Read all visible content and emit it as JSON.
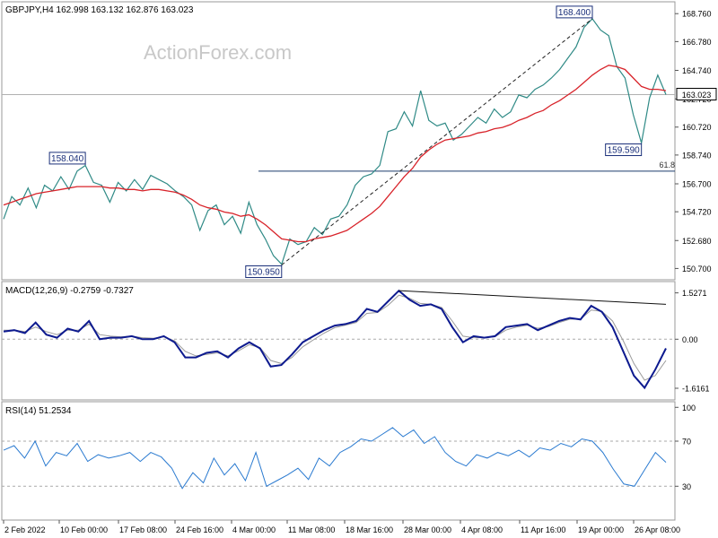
{
  "watermark": "ActionForex.com",
  "chart_data": [
    {
      "type": "line",
      "panel": "price",
      "title": "GBPJPY,H4  162.998 163.132 162.876 163.023",
      "ylim": [
        149.9,
        169.6
      ],
      "y_ticks": [
        "168.760",
        "166.780",
        "164.740",
        "162.720",
        "160.720",
        "158.740",
        "156.700",
        "154.720",
        "152.680",
        "150.700"
      ],
      "x_ticks": [
        "2 Feb 2022",
        "10 Feb 00:00",
        "17 Feb 08:00",
        "24 Feb 16:00",
        "4 Mar 00:00",
        "11 Mar 08:00",
        "18 Mar 16:00",
        "28 Mar 00:00",
        "4 Apr 08:00",
        "11 Apr 16:00",
        "19 Apr 00:00",
        "26 Apr 08:00"
      ],
      "current_price": "163.023",
      "series": [
        {
          "name": "",
          "color": "#2f8a86",
          "values": [
            154.2,
            155.8,
            155.2,
            156.4,
            155.0,
            156.6,
            156.2,
            157.2,
            156.3,
            157.6,
            158.0,
            156.8,
            156.6,
            155.4,
            156.8,
            156.2,
            157.0,
            156.3,
            157.3,
            157.0,
            156.7,
            156.2,
            155.8,
            155.2,
            153.4,
            154.8,
            155.2,
            153.8,
            154.4,
            153.2,
            155.4,
            153.8,
            152.8,
            151.6,
            151.0,
            152.8,
            152.4,
            152.6,
            153.6,
            153.1,
            154.2,
            154.4,
            155.2,
            156.6,
            157.2,
            157.4,
            158.0,
            160.4,
            160.6,
            161.8,
            160.8,
            163.3,
            161.2,
            160.8,
            161.0,
            159.8,
            160.2,
            160.8,
            161.4,
            161.0,
            162.0,
            161.4,
            161.8,
            163.0,
            162.8,
            163.4,
            163.7,
            164.2,
            164.8,
            165.6,
            166.4,
            167.8,
            168.4,
            167.6,
            167.2,
            165.0,
            164.2,
            161.6,
            159.6,
            162.8,
            164.4,
            163.023
          ]
        },
        {
          "name": "",
          "color": "#d8232a",
          "values": [
            155.2,
            155.4,
            155.6,
            155.8,
            156.0,
            156.1,
            156.2,
            156.3,
            156.4,
            156.5,
            156.5,
            156.5,
            156.5,
            156.4,
            156.4,
            156.3,
            156.3,
            156.2,
            156.3,
            156.3,
            156.2,
            156.1,
            155.9,
            155.6,
            155.2,
            155.0,
            154.9,
            154.7,
            154.6,
            154.4,
            154.5,
            154.2,
            153.8,
            153.3,
            152.8,
            152.7,
            152.6,
            152.6,
            152.8,
            152.9,
            153.0,
            153.2,
            153.4,
            153.8,
            154.2,
            154.6,
            155.1,
            155.8,
            156.5,
            157.2,
            157.8,
            158.6,
            159.1,
            159.5,
            159.8,
            159.9,
            160.0,
            160.1,
            160.3,
            160.4,
            160.6,
            160.7,
            160.9,
            161.2,
            161.4,
            161.7,
            161.9,
            162.3,
            162.6,
            163.0,
            163.4,
            163.9,
            164.4,
            164.8,
            165.1,
            165.0,
            164.8,
            164.2,
            163.6,
            163.4,
            163.4,
            163.3
          ]
        }
      ],
      "annotations": [
        {
          "label": "158.040",
          "x_index": 10,
          "value": 158.04
        },
        {
          "label": "150.950",
          "x_index": 34,
          "value": 150.95
        },
        {
          "label": "168.400",
          "x_index": 72,
          "value": 168.4
        },
        {
          "label": "159.590",
          "x_index": 78,
          "value": 159.59
        }
      ],
      "trendline": {
        "from": {
          "x_index": 34,
          "value": 150.95
        },
        "to": {
          "x_index": 72,
          "value": 168.4
        }
      },
      "fib_level": {
        "label": "61.8",
        "value": 157.6
      },
      "horizontal_line": 163.023
    },
    {
      "type": "line",
      "panel": "macd",
      "title": "MACD(12,26,9) -0.2759 -0.7327",
      "ylim": [
        -2.0,
        1.9
      ],
      "y_ticks": [
        "1.5271",
        "0.00",
        "-1.6161"
      ],
      "zero_line": 0,
      "series": [
        {
          "name": "",
          "color": "#0d1a8f",
          "values": [
            0.25,
            0.3,
            0.2,
            0.55,
            0.15,
            0.05,
            0.35,
            0.25,
            0.6,
            0.0,
            0.05,
            0.05,
            0.1,
            0.0,
            0.0,
            0.1,
            -0.1,
            -0.6,
            -0.6,
            -0.45,
            -0.4,
            -0.6,
            -0.3,
            -0.1,
            -0.3,
            -0.9,
            -0.85,
            -0.5,
            -0.1,
            0.1,
            0.3,
            0.45,
            0.5,
            0.6,
            1.0,
            0.9,
            1.25,
            1.6,
            1.3,
            1.1,
            1.15,
            1.0,
            0.4,
            -0.1,
            0.1,
            0.05,
            0.1,
            0.4,
            0.45,
            0.5,
            0.3,
            0.45,
            0.6,
            0.7,
            0.65,
            1.1,
            0.9,
            0.4,
            -0.4,
            -1.2,
            -1.6,
            -1.0,
            -0.3
          ]
        },
        {
          "name": "",
          "color": "#9a9a9a",
          "values": [
            0.3,
            0.3,
            0.25,
            0.4,
            0.25,
            0.15,
            0.3,
            0.3,
            0.5,
            0.15,
            0.1,
            0.08,
            0.1,
            0.05,
            0.03,
            0.08,
            -0.05,
            -0.4,
            -0.55,
            -0.5,
            -0.45,
            -0.55,
            -0.38,
            -0.18,
            -0.28,
            -0.7,
            -0.8,
            -0.6,
            -0.25,
            -0.02,
            0.2,
            0.38,
            0.46,
            0.55,
            0.85,
            0.88,
            1.12,
            1.45,
            1.35,
            1.18,
            1.15,
            1.05,
            0.6,
            0.1,
            0.05,
            0.05,
            0.08,
            0.3,
            0.4,
            0.46,
            0.36,
            0.42,
            0.55,
            0.66,
            0.66,
            0.96,
            0.92,
            0.6,
            -0.05,
            -0.8,
            -1.35,
            -1.2,
            -0.7
          ]
        }
      ],
      "trendline": {
        "from": {
          "x_index": 37,
          "value": 1.6
        },
        "to": {
          "x_index": 62,
          "value": 1.15
        }
      }
    },
    {
      "type": "line",
      "panel": "rsi",
      "title": "RSI(14) 51.2534",
      "ylim": [
        0,
        105
      ],
      "y_ticks": [
        "100",
        "70",
        "30"
      ],
      "levels": [
        70,
        30
      ],
      "series": [
        {
          "name": "",
          "color": "#2a7ad0",
          "values": [
            62,
            66,
            55,
            70,
            48,
            60,
            57,
            68,
            52,
            58,
            55,
            57,
            60,
            52,
            60,
            56,
            46,
            28,
            42,
            33,
            55,
            40,
            50,
            35,
            60,
            30,
            35,
            40,
            46,
            36,
            55,
            48,
            60,
            65,
            72,
            70,
            76,
            82,
            74,
            80,
            68,
            74,
            60,
            52,
            48,
            58,
            55,
            60,
            57,
            62,
            56,
            64,
            62,
            68,
            65,
            72,
            70,
            60,
            45,
            32,
            30,
            45,
            60,
            51.25
          ]
        }
      ]
    }
  ]
}
